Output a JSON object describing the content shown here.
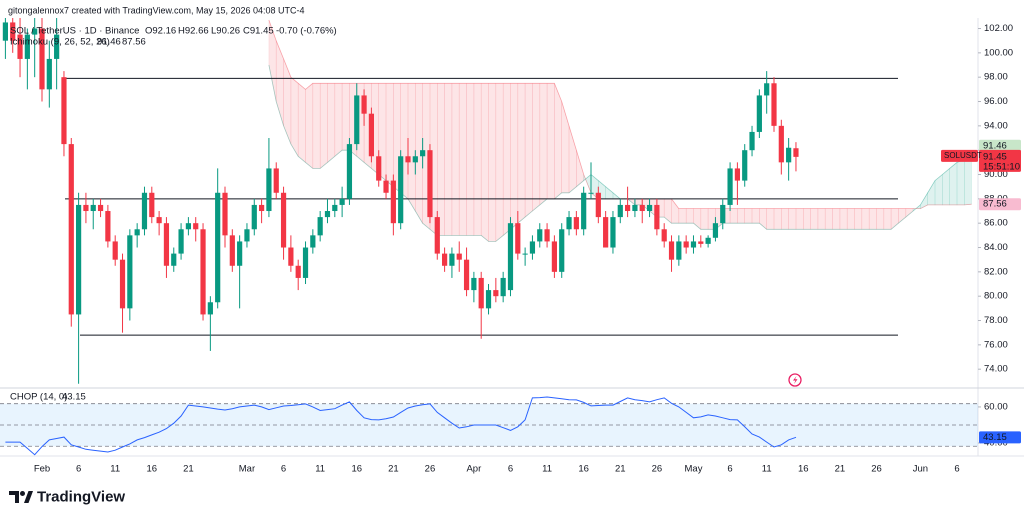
{
  "chart_data": {
    "type": "candlestick",
    "author_line": "gitongalennox7 created with TradingView.com, May 15, 2026 04:08 UTC-4",
    "symbol": "SOL / TetherUS · 1D · Binance",
    "legend": {
      "open": "O92.16",
      "high": "H92.66",
      "low": "L90.26",
      "close": "C91.45",
      "change": "-0.70 (-0.76%)"
    },
    "brand": "TradingView",
    "categories": [
      null,
      null,
      null,
      null,
      null,
      "Feb",
      null,
      null,
      null,
      null,
      "6",
      null,
      null,
      null,
      null,
      "11",
      null,
      null,
      null,
      null,
      "16",
      null,
      null,
      null,
      null,
      "21",
      null,
      null,
      null,
      null,
      null,
      null,
      null,
      "Mar",
      null,
      null,
      null,
      null,
      "6",
      null,
      null,
      null,
      null,
      "11",
      null,
      null,
      null,
      null,
      "16",
      null,
      null,
      null,
      null,
      "21",
      null,
      null,
      null,
      null,
      "26",
      null,
      null,
      null,
      null,
      null,
      "Apr",
      null,
      null,
      null,
      null,
      "6",
      null,
      null,
      null,
      null,
      "11",
      null,
      null,
      null,
      null,
      "16",
      null,
      null,
      null,
      null,
      "21",
      null,
      null,
      null,
      null,
      "26",
      null,
      null,
      null,
      null,
      "May",
      null,
      null,
      null,
      null,
      "6",
      null,
      null,
      null,
      null,
      "11",
      null,
      null,
      null,
      null,
      "16",
      null,
      null,
      null,
      null,
      "21",
      null,
      null,
      null,
      null,
      "26",
      null,
      null,
      null,
      null,
      null,
      "Jun",
      null,
      null,
      null,
      null,
      "6",
      null,
      null
    ],
    "open": [
      101,
      102.5,
      101.5,
      99.5,
      101.5,
      102,
      97,
      99.5,
      98,
      92.5,
      78.5,
      87.5,
      87,
      87.5,
      87,
      84.5,
      83,
      79,
      85,
      85.5,
      88.5,
      86.5,
      86,
      82.5,
      83.5,
      85.5,
      86,
      85.5,
      78.5,
      79.5,
      88.5,
      85,
      82.5,
      84.5,
      85.5,
      87.5,
      87,
      90.5,
      88.5,
      84,
      82.5,
      81.5,
      84,
      85,
      86.5,
      87,
      87.5,
      88,
      92.5,
      96.5,
      95,
      91.5,
      89.5,
      89.5,
      86,
      91.5,
      91,
      91.5,
      92,
      86.5,
      83.5,
      82.5,
      83.5,
      83,
      80.5,
      81.5,
      79,
      80.5,
      80,
      80.5,
      86,
      83.5,
      83.5,
      84.5,
      85.5,
      84.5,
      82,
      85.5,
      86.5,
      85.5,
      88.5,
      88.5,
      86.5,
      84,
      86.5,
      87.5,
      87,
      87.5,
      87,
      87.5,
      85.5,
      84.5,
      83,
      84.5,
      84,
      84.5,
      84.3,
      84.8,
      86,
      87.5,
      90.5,
      89.5,
      92,
      93.5,
      96.5,
      97.5,
      94,
      91,
      92.16,
      null,
      null,
      null,
      null,
      null,
      null,
      null,
      null,
      null,
      null,
      null,
      null,
      null,
      null,
      null,
      null,
      null,
      null,
      null,
      null,
      null,
      null,
      null,
      null
    ],
    "high": [
      103.5,
      103,
      103,
      102,
      103,
      103,
      101,
      103,
      98.5,
      93,
      88.5,
      88.5,
      88,
      88,
      87.5,
      85,
      83.5,
      85.5,
      86,
      89,
      89,
      87,
      86.5,
      84,
      86,
      86.5,
      86.5,
      86,
      80,
      90.5,
      89,
      85.5,
      85,
      86,
      88,
      88,
      93,
      91,
      89,
      85,
      83,
      84.5,
      85.5,
      87,
      88,
      88,
      89,
      93,
      97.5,
      97,
      95.5,
      92,
      90,
      90,
      92,
      93,
      92,
      93,
      92.5,
      87,
      84,
      84,
      84.5,
      84,
      82,
      82,
      81,
      81.5,
      82,
      86.5,
      87,
      84,
      85,
      86,
      86,
      85,
      86,
      87,
      87,
      89,
      91,
      89,
      87,
      87,
      88,
      89,
      88,
      88,
      88,
      88,
      86,
      85,
      85,
      85,
      85,
      85,
      85,
      86.5,
      88,
      91,
      91,
      92.5,
      94,
      97,
      98.5,
      98,
      94.5,
      93,
      92.66,
      null,
      null,
      null,
      null,
      null,
      null,
      null,
      null,
      null,
      null,
      null,
      null,
      null,
      null,
      null,
      null,
      null,
      null,
      null,
      null,
      null,
      null,
      null,
      null
    ],
    "low": [
      99.5,
      100,
      98,
      97,
      98,
      96,
      95.5,
      97,
      91.5,
      77.5,
      72.8,
      86,
      85.5,
      86.5,
      84,
      82.5,
      77,
      78,
      84,
      85,
      86,
      85,
      81.5,
      82,
      83,
      85,
      84.5,
      78,
      75.5,
      79,
      84,
      82,
      79,
      84,
      85,
      86,
      86.5,
      88,
      83,
      82,
      80.5,
      81,
      83.5,
      84.5,
      86,
      86.5,
      86.5,
      87.5,
      92,
      94,
      91,
      89,
      88,
      85,
      85.5,
      90,
      90,
      90.5,
      86,
      83,
      82,
      81.5,
      82,
      80,
      79.5,
      76.5,
      78.5,
      79.5,
      79.5,
      80,
      83,
      82.5,
      83,
      84,
      84,
      81.5,
      81.5,
      85,
      85,
      85,
      88,
      86,
      84,
      83.5,
      86,
      86.5,
      86.5,
      86,
      86.5,
      85,
      84,
      82,
      82.5,
      83.5,
      83.5,
      84,
      84,
      84.5,
      85.5,
      87,
      87.5,
      89,
      91.5,
      93,
      95,
      93.5,
      90,
      89.5,
      90.26,
      null,
      null,
      null,
      null,
      null,
      null,
      null,
      null,
      null,
      null,
      null,
      null,
      null,
      null,
      null,
      null,
      null,
      null,
      null,
      null,
      null,
      null,
      null,
      null
    ],
    "close": [
      102.5,
      101,
      99.5,
      101.5,
      102,
      97,
      99.5,
      101.5,
      92.5,
      78.5,
      87.5,
      87,
      87.5,
      87,
      84.5,
      83,
      79,
      85,
      85.5,
      88.5,
      86.5,
      86,
      82.5,
      83.5,
      85.5,
      86,
      85.5,
      78.5,
      79.5,
      88.5,
      85,
      82.5,
      84.5,
      85.5,
      87.5,
      87,
      90.5,
      88.5,
      84,
      82.5,
      81.5,
      84,
      85,
      86.5,
      87,
      87.5,
      88,
      92.5,
      96.5,
      95,
      91.5,
      89.5,
      88.5,
      86,
      91.5,
      91,
      91.5,
      92,
      86.5,
      83.5,
      82.5,
      83.5,
      83,
      80.5,
      81.5,
      79,
      80.5,
      80,
      81.5,
      86,
      83.5,
      83.5,
      84.5,
      85.5,
      84.5,
      82,
      85.5,
      86.5,
      85.5,
      88.5,
      88.5,
      86.5,
      84,
      86.5,
      87.5,
      87,
      87.5,
      87,
      87.5,
      85.5,
      84.5,
      83,
      84.5,
      84,
      84.5,
      84.3,
      84.8,
      86,
      87.5,
      90.5,
      89.5,
      92,
      93.5,
      96.5,
      97.5,
      94,
      91,
      92.2,
      91.45,
      null,
      null,
      null,
      null,
      null,
      null,
      null,
      null,
      null,
      null,
      null,
      null,
      null,
      null,
      null,
      null,
      null,
      null,
      null,
      null,
      null,
      null,
      null,
      null
    ],
    "up_color": "#089981",
    "down_color": "#f23645",
    "ylim": [
      72.7,
      102.7
    ],
    "yticks": [
      {
        "value": 74,
        "label": "74.00"
      },
      {
        "value": 76,
        "label": "76.00"
      },
      {
        "value": 78,
        "label": "78.00"
      },
      {
        "value": 80,
        "label": "80.00"
      },
      {
        "value": 82,
        "label": "82.00"
      },
      {
        "value": 84,
        "label": "84.00"
      },
      {
        "value": 86,
        "label": "86.00"
      },
      {
        "value": 88,
        "label": "88.00"
      },
      {
        "value": 90,
        "label": "90.00"
      },
      {
        "value": 92,
        "label": "92.00"
      },
      {
        "value": 94,
        "label": "94.00"
      },
      {
        "value": 96,
        "label": "96.00"
      },
      {
        "value": 98,
        "label": "98.00"
      },
      {
        "value": 100,
        "label": "100.00"
      },
      {
        "value": 102,
        "label": "102.00"
      }
    ],
    "grid": false,
    "levels": [
      97.9,
      88,
      76.8
    ],
    "level_color": "#131722",
    "last_price": {
      "symbol": "SOLUSDT",
      "label": "91.45",
      "countdown": "15:51:10"
    },
    "ichimoku": {
      "name": "Ichimoku (9, 26, 52, 26)",
      "span_a": [
        null,
        null,
        null,
        null,
        null,
        null,
        null,
        null,
        null,
        null,
        null,
        null,
        null,
        null,
        null,
        null,
        null,
        null,
        null,
        null,
        null,
        null,
        null,
        null,
        null,
        null,
        null,
        null,
        null,
        null,
        null,
        null,
        null,
        null,
        null,
        null,
        99,
        96,
        94,
        92.5,
        91.5,
        91,
        90.5,
        90.5,
        91,
        91.5,
        92,
        92,
        91.5,
        91,
        90.5,
        90,
        89.5,
        89,
        88.5,
        88,
        87,
        86,
        85.5,
        85,
        85,
        85,
        85,
        85,
        85,
        85,
        84.5,
        84.5,
        85,
        85.5,
        86,
        86.5,
        87,
        87.5,
        88,
        88,
        88.5,
        88.5,
        89,
        89.5,
        90,
        89.5,
        89,
        88.5,
        88,
        88,
        87.5,
        87.5,
        87,
        86.5,
        86.5,
        86,
        86,
        86,
        86,
        85.5,
        85.5,
        85.5,
        86,
        86,
        86,
        86,
        86,
        86,
        85.5,
        85.5,
        85.5,
        85.5,
        85.5,
        85.5,
        85.5,
        85.5,
        85.5,
        85.5,
        85.5,
        85.5,
        85.5,
        85.5,
        85.5,
        85.5,
        85.5,
        85.5,
        86,
        86.5,
        87,
        87.5,
        88.5,
        89.5,
        90,
        90.5,
        91,
        91.2,
        91.46
      ],
      "span_b": [
        null,
        null,
        null,
        null,
        null,
        null,
        null,
        null,
        null,
        null,
        null,
        null,
        null,
        null,
        null,
        null,
        null,
        null,
        null,
        null,
        null,
        null,
        null,
        null,
        null,
        null,
        null,
        null,
        null,
        null,
        null,
        null,
        null,
        null,
        null,
        null,
        102.7,
        101,
        99.5,
        98,
        97.5,
        97,
        97.5,
        97.5,
        97.5,
        97.5,
        97.5,
        97.5,
        97.5,
        97.5,
        97.5,
        97.5,
        97.5,
        97.5,
        97.5,
        97.5,
        97.5,
        97.5,
        97.5,
        97.5,
        97.5,
        97.5,
        97.5,
        97.5,
        97.5,
        97.5,
        97.5,
        97.5,
        97.5,
        97.5,
        97.5,
        97.5,
        97.5,
        97.5,
        97.5,
        97.5,
        96,
        94,
        92,
        90,
        88.5,
        88,
        88,
        88,
        88,
        88,
        88,
        88,
        88,
        88,
        88,
        88,
        87.2,
        87.2,
        87.2,
        87.2,
        87.2,
        87.2,
        87.2,
        87.2,
        87.2,
        87.2,
        87.2,
        87.2,
        87.2,
        87.2,
        87.2,
        87.2,
        87.2,
        87.2,
        87.2,
        87.2,
        87.2,
        87.2,
        87.2,
        87.2,
        87.2,
        87.2,
        87.2,
        87.2,
        87.2,
        87.2,
        87.2,
        87.2,
        87.2,
        87.2,
        87.5,
        87.5,
        87.5,
        87.5,
        87.5,
        87.5,
        87.56
      ],
      "span_a_label": "91.46",
      "span_b_label": "87.56",
      "up_color": "#089981",
      "down_color": "#f23645"
    },
    "chop": {
      "name": "CHOP (14, 0)",
      "values": [
        40.5,
        40.5,
        40.5,
        37,
        33.5,
        38,
        41.7,
        42.5,
        43.3,
        39,
        37.8,
        36.5,
        36,
        35.5,
        35,
        36,
        37.8,
        39.5,
        41.7,
        43,
        44.5,
        46,
        48,
        51,
        55,
        61,
        60.5,
        60,
        59.4,
        58.8,
        58.3,
        59,
        60,
        60.5,
        61,
        60,
        58.5,
        59.5,
        60.5,
        60.8,
        61.2,
        61.7,
        60,
        58,
        58.5,
        59,
        61,
        62.8,
        58,
        54,
        53,
        52.8,
        53.5,
        54.4,
        57,
        59.4,
        60.5,
        61.2,
        61.7,
        57,
        54,
        51,
        48.3,
        49,
        50,
        50,
        50,
        50,
        48.5,
        47,
        49,
        52.8,
        65,
        65.2,
        65.5,
        65,
        64.5,
        64,
        63.9,
        62.5,
        60.6,
        60.8,
        61,
        61,
        63,
        65,
        64,
        63.5,
        62.8,
        64,
        65,
        62,
        60,
        57,
        54,
        54.5,
        55.6,
        55,
        54,
        53,
        52.8,
        49,
        45,
        43.3,
        40.5,
        37.8,
        39,
        41.7,
        43.15,
        null,
        null,
        null,
        null,
        null,
        null,
        null,
        null,
        null,
        null,
        null,
        null,
        null,
        null,
        null,
        null,
        null,
        null,
        null,
        null,
        null,
        null,
        null,
        null
      ],
      "value_label": "43.15",
      "color": "#2962ff",
      "ylim": [
        32.8,
        70.5
      ],
      "yticks": [
        {
          "value": 60,
          "label": "60.00"
        },
        {
          "value": 40,
          "label": "40.00"
        }
      ],
      "bands": [
        61.8,
        50,
        38.2
      ]
    }
  }
}
